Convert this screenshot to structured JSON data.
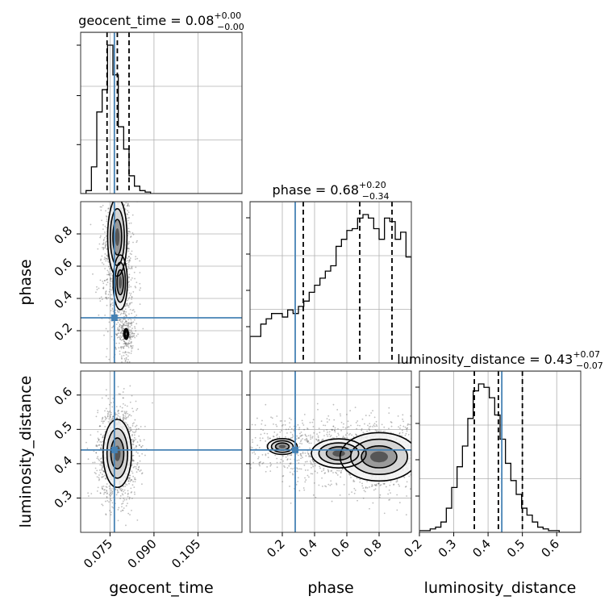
{
  "chart_data": {
    "type": "corner",
    "colors": {
      "truth": "#4682b4",
      "contour": "#000000",
      "grid": "#b0b0b0",
      "scatter": "#444444"
    },
    "parameters": [
      {
        "name": "geocent_time",
        "xlabel": "geocent_time",
        "ylabel": "",
        "range": [
          0.065,
          0.12
        ],
        "ticks": [
          0.075,
          0.09,
          0.105
        ],
        "tick_labels": [
          "0.075",
          "0.090",
          "0.105"
        ],
        "truth": 0.0765,
        "title": {
          "main": "geocent_time = 0.08",
          "sup": "+0.00",
          "sub": "−0.00"
        },
        "quantiles": [
          0.074,
          0.0775,
          0.0815
        ],
        "hist": [
          0,
          2,
          18,
          55,
          70,
          100,
          80,
          45,
          30,
          12,
          5,
          2,
          1,
          0,
          0,
          0,
          0,
          0,
          0,
          0,
          0,
          0,
          0,
          0,
          0,
          0,
          0,
          0,
          0,
          0
        ]
      },
      {
        "name": "phase",
        "xlabel": "phase",
        "ylabel": "phase",
        "range": [
          0.0,
          1.0
        ],
        "ticks": [
          0.2,
          0.4,
          0.6,
          0.8
        ],
        "tick_labels": [
          "0.2",
          "0.4",
          "0.6",
          "0.8"
        ],
        "truth": 0.28,
        "title": {
          "main": "phase = 0.68",
          "sup": "+0.20",
          "sub": "−0.34"
        },
        "quantiles": [
          0.33,
          0.68,
          0.88
        ],
        "hist": [
          15,
          15,
          22,
          25,
          28,
          28,
          26,
          30,
          28,
          32,
          35,
          40,
          44,
          48,
          52,
          55,
          66,
          70,
          75,
          76,
          82,
          84,
          82,
          76,
          70,
          82,
          80,
          70,
          74,
          60
        ]
      },
      {
        "name": "luminosity_distance",
        "xlabel": "luminosity_distance",
        "ylabel": "luminosity_distance",
        "range": [
          0.2,
          0.67
        ],
        "ticks": [
          0.2,
          0.3,
          0.4,
          0.5,
          0.6
        ],
        "tick_labels": [
          "0.2",
          "0.3",
          "0.4",
          "0.5",
          "0.6"
        ],
        "truth": 0.44,
        "title": {
          "main": "luminosity_distance = 0.43",
          "sup": "+0.07",
          "sub": "−0.07"
        },
        "quantiles": [
          0.36,
          0.43,
          0.5
        ],
        "hist": [
          1,
          1,
          2,
          3,
          6,
          14,
          26,
          38,
          50,
          66,
          82,
          86,
          84,
          78,
          68,
          54,
          40,
          30,
          22,
          14,
          10,
          6,
          3,
          2,
          1,
          1,
          0,
          0,
          0,
          0
        ]
      }
    ],
    "y2_ticks": {
      "phase": [
        "0.2",
        "0.4",
        "0.6",
        "0.8"
      ],
      "luminosity_distance": [
        "0.3",
        "0.4",
        "0.5",
        "0.6"
      ]
    },
    "joint": [
      {
        "x_param": "geocent_time",
        "y_param": "phase",
        "blobs": [
          {
            "cx": 0.0775,
            "cy": 0.78,
            "sx": 0.0015,
            "sy": 0.11,
            "w": 1.0
          },
          {
            "cx": 0.0785,
            "cy": 0.5,
            "sx": 0.002,
            "sy": 0.14,
            "w": 0.55
          },
          {
            "cx": 0.0805,
            "cy": 0.18,
            "sx": 0.0012,
            "sy": 0.05,
            "w": 0.3
          }
        ]
      },
      {
        "x_param": "geocent_time",
        "y_param": "luminosity_distance",
        "blobs": [
          {
            "cx": 0.0775,
            "cy": 0.43,
            "sx": 0.0022,
            "sy": 0.045,
            "w": 1.0
          }
        ]
      },
      {
        "x_param": "phase",
        "y_param": "luminosity_distance",
        "blobs": [
          {
            "cx": 0.8,
            "cy": 0.42,
            "sx": 0.11,
            "sy": 0.032,
            "w": 1.0
          },
          {
            "cx": 0.55,
            "cy": 0.43,
            "sx": 0.14,
            "sy": 0.035,
            "w": 0.55
          },
          {
            "cx": 0.2,
            "cy": 0.45,
            "sx": 0.12,
            "sy": 0.03,
            "w": 0.35
          }
        ]
      }
    ]
  }
}
